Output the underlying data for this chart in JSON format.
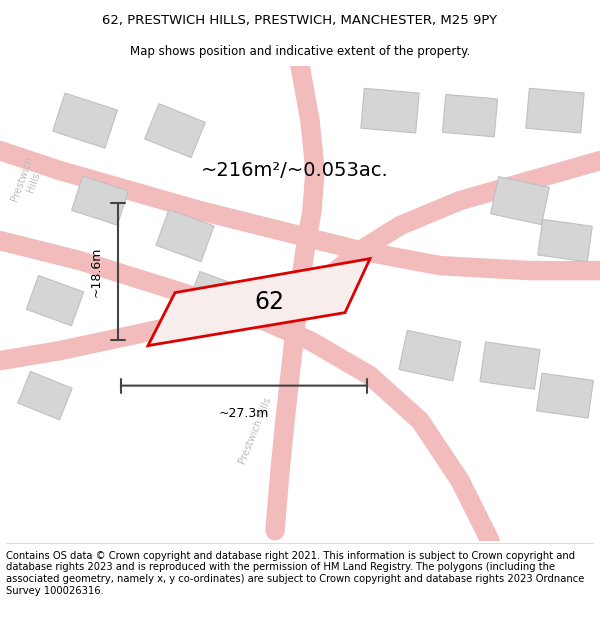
{
  "title_line1": "62, PRESTWICH HILLS, PRESTWICH, MANCHESTER, M25 9PY",
  "title_line2": "Map shows position and indicative extent of the property.",
  "area_label": "~216m²/~0.053ac.",
  "property_number": "62",
  "dim_width": "~27.3m",
  "dim_height": "~18.6m",
  "footer_text": "Contains OS data © Crown copyright and database right 2021. This information is subject to Crown copyright and database rights 2023 and is reproduced with the permission of HM Land Registry. The polygons (including the associated geometry, namely x, y co-ordinates) are subject to Crown copyright and database rights 2023 Ordnance Survey 100026316.",
  "map_bg": "#eeecec",
  "road_color": "#f2bcbc",
  "road_edge_color": "#e8a8a8",
  "building_color": "#d5d5d5",
  "building_edge": "#c0c0c0",
  "property_edge": "#dd0000",
  "property_fill": "#f7eded",
  "dim_line_color": "#444444",
  "road_label_color": "#bbbbbb",
  "title_fontsize": 9.5,
  "subtitle_fontsize": 8.5,
  "footer_fontsize": 7.2,
  "area_fontsize": 14,
  "number_fontsize": 17,
  "dim_fontsize": 9
}
